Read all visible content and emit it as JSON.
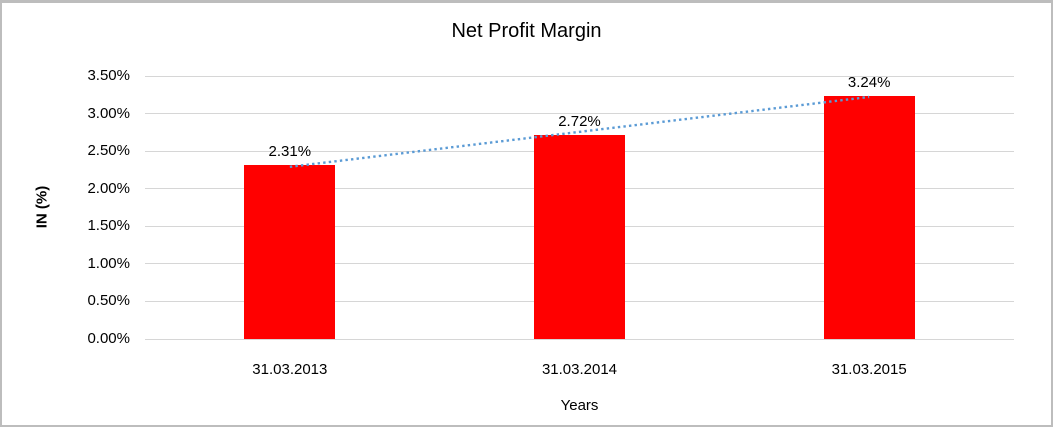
{
  "colors": {
    "bar": "#FF0000",
    "trendline": "#5B9BD5",
    "gridline": "#D6D6D6",
    "text": "#000000",
    "frame_border": "#BDBDBD"
  },
  "chart_data": {
    "type": "bar",
    "title": "Net Profit Margin",
    "xlabel": "Years",
    "ylabel": "IN (%)",
    "categories": [
      "31.03.2013",
      "31.03.2014",
      "31.03.2015"
    ],
    "series": [
      {
        "name": "Net Profit Margin",
        "values": [
          2.31,
          2.72,
          3.24
        ]
      }
    ],
    "data_labels": [
      "2.31%",
      "2.72%",
      "3.24%"
    ],
    "yticks": [
      "0.00%",
      "0.50%",
      "1.00%",
      "1.50%",
      "2.00%",
      "2.50%",
      "3.00%",
      "3.50%"
    ],
    "ytick_values": [
      0,
      0.5,
      1,
      1.5,
      2,
      2.5,
      3,
      3.5
    ],
    "ylim": [
      0,
      3.5
    ],
    "grid": true,
    "legend": "none",
    "trendline": {
      "type": "linear",
      "style": "dotted"
    }
  }
}
